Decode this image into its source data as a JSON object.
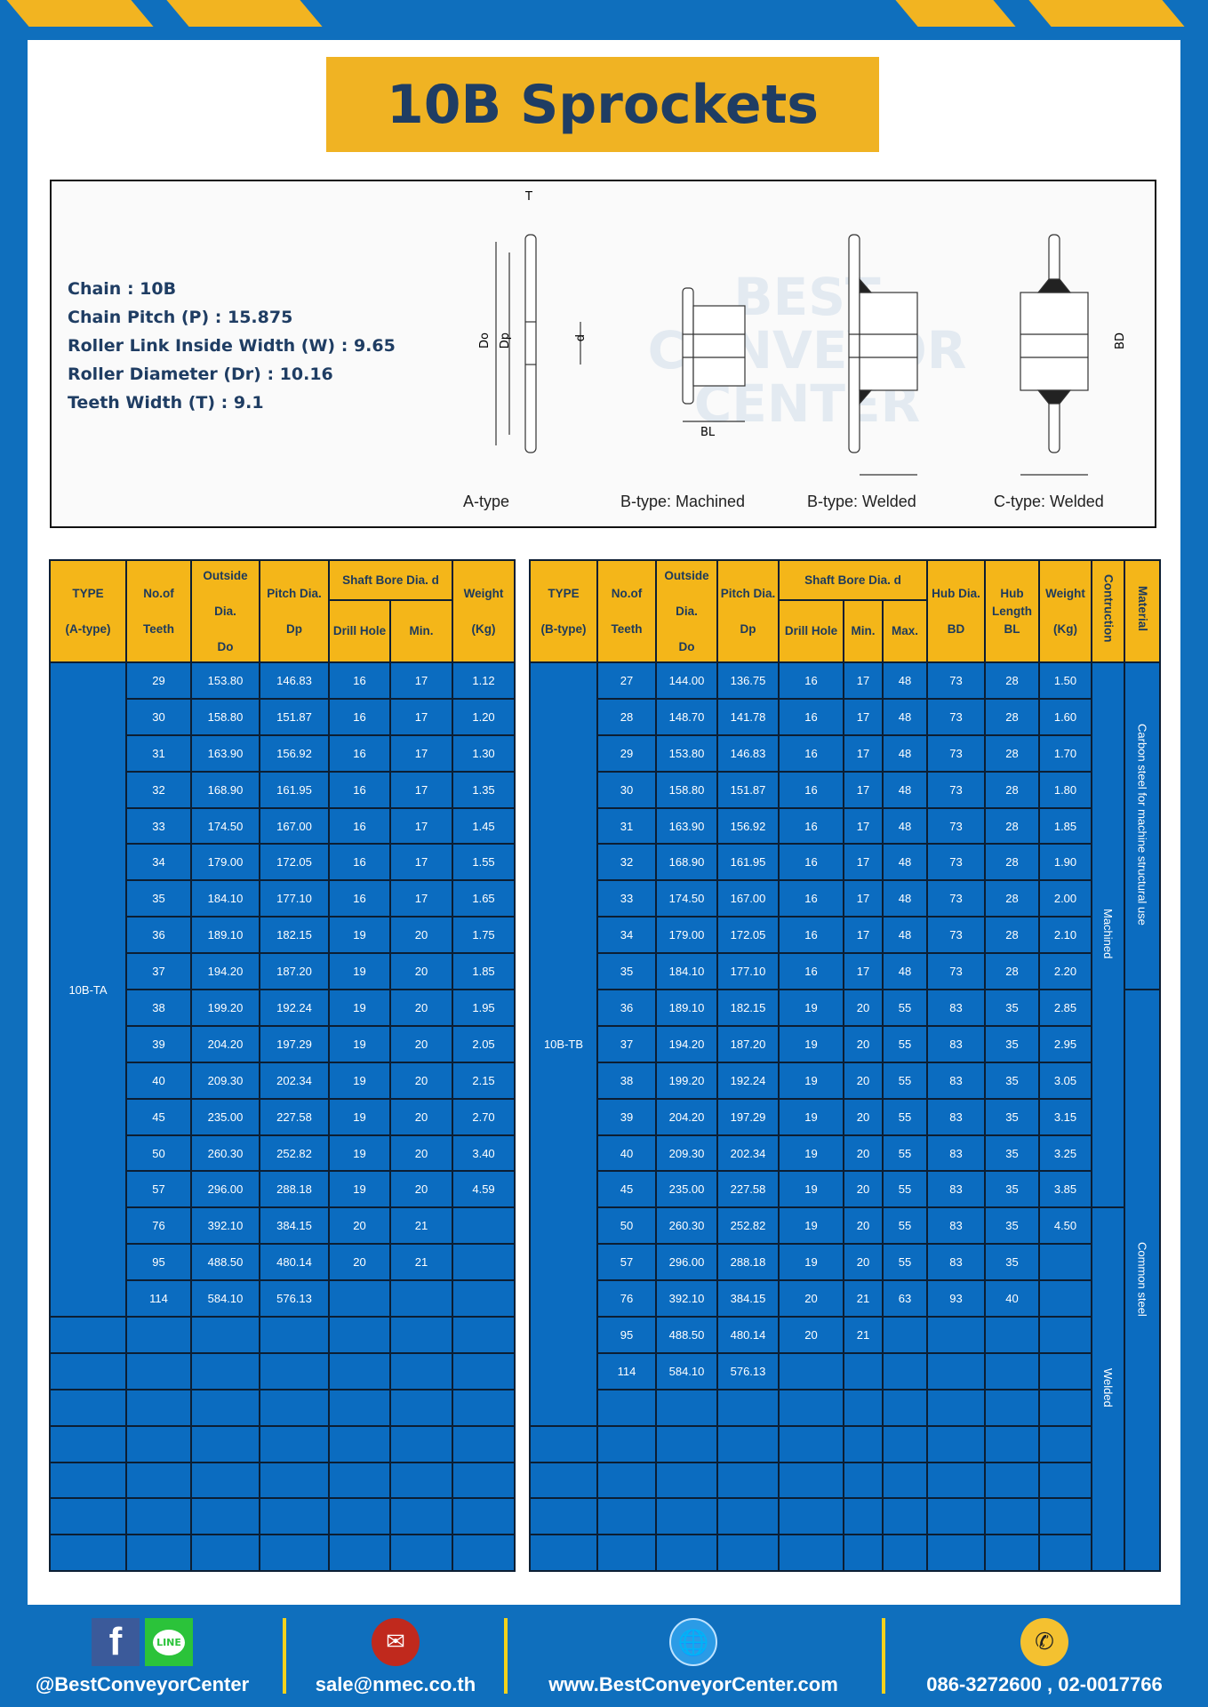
{
  "title": "10B Sprockets",
  "specs": [
    "Chain  :  10B",
    "Chain Pitch (P)  :  15.875",
    "Roller Link Inside Width (W) : 9.65",
    "Roller Diameter (Dr) : 10.16",
    "Teeth Width (T)  :  9.1"
  ],
  "diagram": {
    "labels": [
      "A-type",
      "B-type: Machined",
      "B-type: Welded",
      "C-type: Welded"
    ],
    "dims": {
      "T": "T",
      "Do": "Do",
      "Dp": "Dp",
      "d": "d",
      "BD": "BD",
      "BL": "BL"
    },
    "watermark": "BEST CONVEYOR CENTER"
  },
  "colors": {
    "background": "#0f6fbd",
    "accent": "#f0b323",
    "title_text": "#1f3d63",
    "cell": "#0b6cc0"
  },
  "table_a": {
    "headers": {
      "type": "TYPE",
      "type_sub": "(A-type)",
      "teeth": "No.of",
      "teeth_sub": "Teeth",
      "od": "Outside",
      "od_sub": "Dia.",
      "od_sub2": "Do",
      "pd": "Pitch Dia.",
      "pd_sub": "Dp",
      "bore": "Shaft Bore Dia. d",
      "drill": "Drill Hole",
      "min": "Min.",
      "weight": "Weight",
      "weight_sub": "(Kg)"
    },
    "type_value": "10B-TA",
    "rows": [
      [
        "29",
        "153.80",
        "146.83",
        "16",
        "17",
        "1.12"
      ],
      [
        "30",
        "158.80",
        "151.87",
        "16",
        "17",
        "1.20"
      ],
      [
        "31",
        "163.90",
        "156.92",
        "16",
        "17",
        "1.30"
      ],
      [
        "32",
        "168.90",
        "161.95",
        "16",
        "17",
        "1.35"
      ],
      [
        "33",
        "174.50",
        "167.00",
        "16",
        "17",
        "1.45"
      ],
      [
        "34",
        "179.00",
        "172.05",
        "16",
        "17",
        "1.55"
      ],
      [
        "35",
        "184.10",
        "177.10",
        "16",
        "17",
        "1.65"
      ],
      [
        "36",
        "189.10",
        "182.15",
        "19",
        "20",
        "1.75"
      ],
      [
        "37",
        "194.20",
        "187.20",
        "19",
        "20",
        "1.85"
      ],
      [
        "38",
        "199.20",
        "192.24",
        "19",
        "20",
        "1.95"
      ],
      [
        "39",
        "204.20",
        "197.29",
        "19",
        "20",
        "2.05"
      ],
      [
        "40",
        "209.30",
        "202.34",
        "19",
        "20",
        "2.15"
      ],
      [
        "45",
        "235.00",
        "227.58",
        "19",
        "20",
        "2.70"
      ],
      [
        "50",
        "260.30",
        "252.82",
        "19",
        "20",
        "3.40"
      ],
      [
        "57",
        "296.00",
        "288.18",
        "19",
        "20",
        "4.59"
      ],
      [
        "76",
        "392.10",
        "384.15",
        "20",
        "21",
        ""
      ],
      [
        "95",
        "488.50",
        "480.14",
        "20",
        "21",
        ""
      ],
      [
        "114",
        "584.10",
        "576.13",
        "",
        "",
        ""
      ]
    ]
  },
  "table_b": {
    "headers": {
      "type": "TYPE",
      "type_sub": "(B-type)",
      "teeth": "No.of",
      "teeth_sub": "Teeth",
      "od": "Outside",
      "od_sub": "Dia.",
      "od_sub2": "Do",
      "pd": "Pitch Dia.",
      "pd_sub": "Dp",
      "bore": "Shaft Bore Dia. d",
      "drill": "Drill Hole",
      "min": "Min.",
      "max": "Max.",
      "hub": "Hub Dia.",
      "hub_sub": "BD",
      "hubl": "Hub",
      "hubl_sub": "Length",
      "hubl_sub2": "BL",
      "weight": "Weight",
      "weight_sub": "(Kg)",
      "construction": "Contruction",
      "material": "Material"
    },
    "type_value": "10B-TB",
    "construction": [
      "Machined",
      "Welded"
    ],
    "material": [
      "Carbon steel for  machine structural use",
      "Common steel"
    ],
    "rows": [
      [
        "27",
        "144.00",
        "136.75",
        "16",
        "17",
        "48",
        "73",
        "28",
        "1.50"
      ],
      [
        "28",
        "148.70",
        "141.78",
        "16",
        "17",
        "48",
        "73",
        "28",
        "1.60"
      ],
      [
        "29",
        "153.80",
        "146.83",
        "16",
        "17",
        "48",
        "73",
        "28",
        "1.70"
      ],
      [
        "30",
        "158.80",
        "151.87",
        "16",
        "17",
        "48",
        "73",
        "28",
        "1.80"
      ],
      [
        "31",
        "163.90",
        "156.92",
        "16",
        "17",
        "48",
        "73",
        "28",
        "1.85"
      ],
      [
        "32",
        "168.90",
        "161.95",
        "16",
        "17",
        "48",
        "73",
        "28",
        "1.90"
      ],
      [
        "33",
        "174.50",
        "167.00",
        "16",
        "17",
        "48",
        "73",
        "28",
        "2.00"
      ],
      [
        "34",
        "179.00",
        "172.05",
        "16",
        "17",
        "48",
        "73",
        "28",
        "2.10"
      ],
      [
        "35",
        "184.10",
        "177.10",
        "16",
        "17",
        "48",
        "73",
        "28",
        "2.20"
      ],
      [
        "36",
        "189.10",
        "182.15",
        "19",
        "20",
        "55",
        "83",
        "35",
        "2.85"
      ],
      [
        "37",
        "194.20",
        "187.20",
        "19",
        "20",
        "55",
        "83",
        "35",
        "2.95"
      ],
      [
        "38",
        "199.20",
        "192.24",
        "19",
        "20",
        "55",
        "83",
        "35",
        "3.05"
      ],
      [
        "39",
        "204.20",
        "197.29",
        "19",
        "20",
        "55",
        "83",
        "35",
        "3.15"
      ],
      [
        "40",
        "209.30",
        "202.34",
        "19",
        "20",
        "55",
        "83",
        "35",
        "3.25"
      ],
      [
        "45",
        "235.00",
        "227.58",
        "19",
        "20",
        "55",
        "83",
        "35",
        "3.85"
      ],
      [
        "50",
        "260.30",
        "252.82",
        "19",
        "20",
        "55",
        "83",
        "35",
        "4.50"
      ],
      [
        "57",
        "296.00",
        "288.18",
        "19",
        "20",
        "55",
        "83",
        "35",
        ""
      ],
      [
        "76",
        "392.10",
        "384.15",
        "20",
        "21",
        "63",
        "93",
        "40",
        ""
      ],
      [
        "95",
        "488.50",
        "480.14",
        "20",
        "21",
        "",
        "",
        "",
        ""
      ],
      [
        "114",
        "584.10",
        "576.13",
        "",
        "",
        "",
        "",
        "",
        ""
      ]
    ]
  },
  "footer": {
    "social": "@BestConveyorCenter",
    "email": "sale@nmec.co.th",
    "website": "www.BestConveyorCenter.com",
    "phone": "086-3272600 , 02-0017766",
    "line_label": "LINE"
  }
}
